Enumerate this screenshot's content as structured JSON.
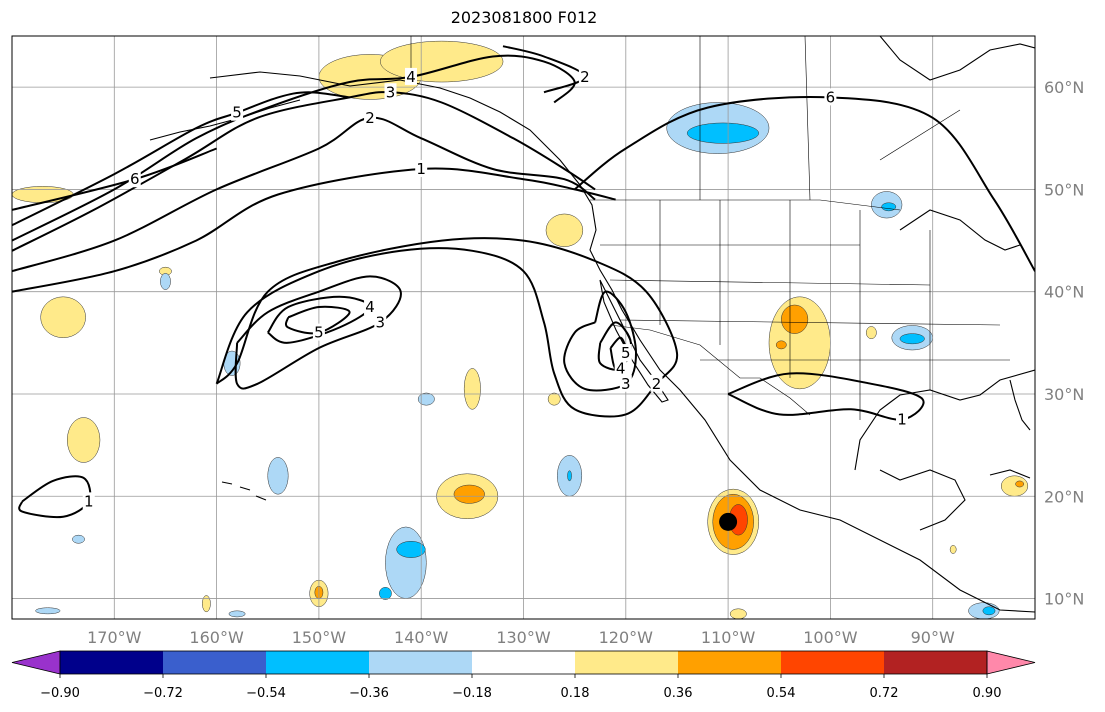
{
  "title": "2023081800 F012",
  "chart_data": {
    "type": "heatmap",
    "title": "2023081800 F012",
    "projection": "plate-carree",
    "lon_range": [
      -180,
      -80
    ],
    "lat_range": [
      8,
      65
    ],
    "grid": true,
    "x_ticks": [
      {
        "lon": -170,
        "label": "170°W"
      },
      {
        "lon": -160,
        "label": "160°W"
      },
      {
        "lon": -150,
        "label": "150°W"
      },
      {
        "lon": -140,
        "label": "140°W"
      },
      {
        "lon": -130,
        "label": "130°W"
      },
      {
        "lon": -120,
        "label": "120°W"
      },
      {
        "lon": -110,
        "label": "110°W"
      },
      {
        "lon": -100,
        "label": "100°W"
      },
      {
        "lon": -90,
        "label": "90°W"
      }
    ],
    "y_ticks": [
      {
        "lat": 60,
        "label": "60°N"
      },
      {
        "lat": 50,
        "label": "50°N"
      },
      {
        "lat": 40,
        "label": "40°N"
      },
      {
        "lat": 30,
        "label": "30°N"
      },
      {
        "lat": 20,
        "label": "20°N"
      },
      {
        "lat": 10,
        "label": "10°N"
      }
    ],
    "colorbar": {
      "placement": "bottom",
      "extend": "both",
      "bins": [
        {
          "from": null,
          "to": -0.9,
          "color": "#9932cc"
        },
        {
          "from": -0.9,
          "to": -0.72,
          "color": "#00008b"
        },
        {
          "from": -0.72,
          "to": -0.54,
          "color": "#3a5fcd"
        },
        {
          "from": -0.54,
          "to": -0.36,
          "color": "#00bfff"
        },
        {
          "from": -0.36,
          "to": -0.18,
          "color": "#add8f6"
        },
        {
          "from": -0.18,
          "to": 0.18,
          "color": "#ffffff"
        },
        {
          "from": 0.18,
          "to": 0.36,
          "color": "#ffea8a"
        },
        {
          "from": 0.36,
          "to": 0.54,
          "color": "#ffa000"
        },
        {
          "from": 0.54,
          "to": 0.72,
          "color": "#ff4500"
        },
        {
          "from": 0.72,
          "to": 0.9,
          "color": "#b22222"
        },
        {
          "from": 0.9,
          "to": null,
          "color": "#ff88aa"
        }
      ],
      "tick_labels": [
        "−0.90",
        "−0.72",
        "−0.54",
        "−0.36",
        "−0.18",
        "0.18",
        "0.36",
        "0.54",
        "0.72",
        "0.90"
      ]
    },
    "shaded_regions": [
      {
        "bin": "0.18–0.36",
        "lon": -145,
        "lat": 61,
        "rx": 5,
        "ry": 2.2,
        "color": "#ffea8a"
      },
      {
        "bin": "0.18–0.36",
        "lon": -138,
        "lat": 62.5,
        "rx": 6,
        "ry": 2,
        "color": "#ffea8a"
      },
      {
        "bin": "0.18–0.36",
        "lon": -126,
        "lat": 46,
        "rx": 1.8,
        "ry": 1.6,
        "color": "#ffea8a"
      },
      {
        "bin": "0.18–0.36",
        "lon": -177,
        "lat": 49.5,
        "rx": 3,
        "ry": 0.8,
        "color": "#ffea8a"
      },
      {
        "bin": "0.18–0.36",
        "lon": -175,
        "lat": 37.5,
        "rx": 2.2,
        "ry": 2,
        "color": "#ffea8a"
      },
      {
        "bin": "0.18–0.36",
        "lon": -173,
        "lat": 25.5,
        "rx": 1.6,
        "ry": 2.2,
        "color": "#ffea8a"
      },
      {
        "bin": "0.18–0.36",
        "lon": -165,
        "lat": 42,
        "rx": 0.6,
        "ry": 0.4,
        "color": "#ffea8a"
      },
      {
        "bin": "0.18–0.36",
        "lon": -135,
        "lat": 30.5,
        "rx": 0.8,
        "ry": 2,
        "color": "#ffea8a"
      },
      {
        "bin": "0.18–0.36",
        "lon": -135.5,
        "lat": 20,
        "rx": 3,
        "ry": 2.2,
        "color": "#ffea8a"
      },
      {
        "bin": "0.36–0.54",
        "lon": -135.3,
        "lat": 20.2,
        "rx": 1.5,
        "ry": 0.9,
        "color": "#ffa000"
      },
      {
        "bin": "0.18–0.36",
        "lon": -150,
        "lat": 10.5,
        "rx": 0.9,
        "ry": 1.3,
        "color": "#ffea8a"
      },
      {
        "bin": "0.36–0.54",
        "lon": -150,
        "lat": 10.6,
        "rx": 0.4,
        "ry": 0.6,
        "color": "#ffa000"
      },
      {
        "bin": "0.18–0.36",
        "lon": -161,
        "lat": 9.5,
        "rx": 0.4,
        "ry": 0.8,
        "color": "#ffea8a"
      },
      {
        "bin": "0.18–0.36",
        "lon": -127,
        "lat": 29.5,
        "rx": 0.6,
        "ry": 0.6,
        "color": "#ffea8a"
      },
      {
        "bin": "0.18–0.36",
        "lon": -103,
        "lat": 35,
        "rx": 3,
        "ry": 4.5,
        "color": "#ffea8a"
      },
      {
        "bin": "0.36–0.54",
        "lon": -103.5,
        "lat": 37.3,
        "rx": 1.3,
        "ry": 1.4,
        "color": "#ffa000"
      },
      {
        "bin": "0.36–0.54",
        "lon": -104.8,
        "lat": 34.8,
        "rx": 0.5,
        "ry": 0.4,
        "color": "#ffa000"
      },
      {
        "bin": "0.18–0.36",
        "lon": -96,
        "lat": 36,
        "rx": 0.5,
        "ry": 0.6,
        "color": "#ffea8a"
      },
      {
        "bin": "0.18–0.36",
        "lon": -109.5,
        "lat": 17.5,
        "rx": 2.5,
        "ry": 3.2,
        "color": "#ffea8a"
      },
      {
        "bin": "0.36–0.54",
        "lon": -109.5,
        "lat": 17.5,
        "rx": 2,
        "ry": 2.7,
        "color": "#ffa000"
      },
      {
        "bin": "0.54–0.72",
        "lon": -109,
        "lat": 17.7,
        "rx": 0.9,
        "ry": 1.5,
        "color": "#ff4500"
      },
      {
        "bin": "0.18–0.36",
        "lon": -82,
        "lat": 21,
        "rx": 1.3,
        "ry": 1,
        "color": "#ffea8a"
      },
      {
        "bin": "0.36–0.54",
        "lon": -81.5,
        "lat": 21.2,
        "rx": 0.4,
        "ry": 0.3,
        "color": "#ffa000"
      },
      {
        "bin": "0.18–0.36",
        "lon": -88,
        "lat": 14.8,
        "rx": 0.3,
        "ry": 0.4,
        "color": "#ffea8a"
      },
      {
        "bin": "0.18–0.36",
        "lon": -109,
        "lat": 8.5,
        "rx": 0.8,
        "ry": 0.5,
        "color": "#ffea8a"
      },
      {
        "bin": "−0.36–−0.18",
        "lon": -111,
        "lat": 56,
        "rx": 5,
        "ry": 2.5,
        "color": "#add8f6"
      },
      {
        "bin": "−0.54–−0.36",
        "lon": -110.5,
        "lat": 55.5,
        "rx": 3.5,
        "ry": 1,
        "color": "#00bfff"
      },
      {
        "bin": "−0.36–−0.18",
        "lon": -94.5,
        "lat": 48.5,
        "rx": 1.5,
        "ry": 1.3,
        "color": "#add8f6"
      },
      {
        "bin": "−0.54–−0.36",
        "lon": -94.3,
        "lat": 48.3,
        "rx": 0.7,
        "ry": 0.4,
        "color": "#00bfff"
      },
      {
        "bin": "−0.36–−0.18",
        "lon": -92,
        "lat": 35.5,
        "rx": 2,
        "ry": 1.2,
        "color": "#add8f6"
      },
      {
        "bin": "−0.54–−0.36",
        "lon": -92,
        "lat": 35.4,
        "rx": 1.2,
        "ry": 0.5,
        "color": "#00bfff"
      },
      {
        "bin": "−0.36–−0.18",
        "lon": -165,
        "lat": 41,
        "rx": 0.5,
        "ry": 0.8,
        "color": "#add8f6"
      },
      {
        "bin": "−0.36–−0.18",
        "lon": -158.5,
        "lat": 33,
        "rx": 0.8,
        "ry": 1.2,
        "color": "#add8f6"
      },
      {
        "bin": "−0.36–−0.18",
        "lon": -139.5,
        "lat": 29.5,
        "rx": 0.8,
        "ry": 0.6,
        "color": "#add8f6"
      },
      {
        "bin": "−0.36–−0.18",
        "lon": -125.5,
        "lat": 22,
        "rx": 1.2,
        "ry": 2,
        "color": "#add8f6"
      },
      {
        "bin": "−0.54–−0.36",
        "lon": -125.5,
        "lat": 22,
        "rx": 0.2,
        "ry": 0.5,
        "color": "#00bfff"
      },
      {
        "bin": "−0.36–−0.18",
        "lon": -154,
        "lat": 22,
        "rx": 1,
        "ry": 1.8,
        "color": "#add8f6"
      },
      {
        "bin": "−0.36–−0.18",
        "lon": -141.5,
        "lat": 13.5,
        "rx": 2,
        "ry": 3.5,
        "color": "#add8f6"
      },
      {
        "bin": "−0.54–−0.36",
        "lon": -141,
        "lat": 14.8,
        "rx": 1.4,
        "ry": 0.8,
        "color": "#00bfff"
      },
      {
        "bin": "−0.54–−0.36",
        "lon": -143.5,
        "lat": 10.5,
        "rx": 0.6,
        "ry": 0.6,
        "color": "#00bfff"
      },
      {
        "bin": "−0.36–−0.18",
        "lon": -173.5,
        "lat": 15.8,
        "rx": 0.6,
        "ry": 0.4,
        "color": "#add8f6"
      },
      {
        "bin": "−0.36–−0.18",
        "lon": -176.5,
        "lat": 8.8,
        "rx": 1.2,
        "ry": 0.3,
        "color": "#add8f6"
      },
      {
        "bin": "−0.36–−0.18",
        "lon": -158,
        "lat": 8.5,
        "rx": 0.8,
        "ry": 0.3,
        "color": "#add8f6"
      },
      {
        "bin": "−0.36–−0.18",
        "lon": -85,
        "lat": 8.8,
        "rx": 1.5,
        "ry": 0.8,
        "color": "#add8f6"
      },
      {
        "bin": "−0.54–−0.36",
        "lon": -84.5,
        "lat": 8.8,
        "rx": 0.6,
        "ry": 0.4,
        "color": "#00bfff"
      }
    ],
    "contours": [
      {
        "label": "1",
        "points": [
          [
            -180,
            40
          ],
          [
            -170,
            42
          ],
          [
            -162,
            45
          ],
          [
            -154,
            49.5
          ],
          [
            -140,
            52
          ],
          [
            -130,
            51
          ],
          [
            -125,
            50
          ],
          [
            -121,
            49
          ]
        ]
      },
      {
        "label": "1",
        "points": [
          [
            -179,
            19.5
          ],
          [
            -176,
            21.5
          ],
          [
            -173,
            21.8
          ],
          [
            -172.5,
            19.5
          ],
          [
            -175,
            18
          ],
          [
            -179,
            18.5
          ],
          [
            -179,
            19.5
          ]
        ]
      },
      {
        "label": "2",
        "points": [
          [
            -180,
            42
          ],
          [
            -170,
            45
          ],
          [
            -160,
            50
          ],
          [
            -150,
            54
          ],
          [
            -145,
            57
          ],
          [
            -140,
            55
          ],
          [
            -133,
            52
          ],
          [
            -126,
            51
          ],
          [
            -123,
            49
          ]
        ]
      },
      {
        "label": "2",
        "points": [
          [
            -132,
            64
          ],
          [
            -128,
            63
          ],
          [
            -124,
            61
          ],
          [
            -128,
            59.5
          ]
        ]
      },
      {
        "label": "2",
        "points": [
          [
            -160,
            31
          ],
          [
            -157,
            38
          ],
          [
            -150,
            42
          ],
          [
            -142,
            44
          ],
          [
            -135,
            44
          ],
          [
            -130,
            42
          ],
          [
            -128,
            37
          ],
          [
            -127,
            32
          ],
          [
            -125,
            28.5
          ],
          [
            -120,
            28
          ],
          [
            -117,
            31
          ],
          [
            -115,
            34
          ],
          [
            -118,
            40
          ],
          [
            -123,
            43
          ],
          [
            -130,
            45
          ],
          [
            -138,
            45
          ],
          [
            -148,
            43
          ],
          [
            -155,
            40
          ],
          [
            -158,
            33
          ],
          [
            -160,
            31
          ]
        ]
      },
      {
        "label": "3",
        "points": [
          [
            -180,
            44
          ],
          [
            -172,
            48
          ],
          [
            -163,
            53
          ],
          [
            -156,
            57
          ],
          [
            -147,
            59
          ],
          [
            -143,
            59.5
          ],
          [
            -138,
            58.5
          ],
          [
            -131,
            55
          ],
          [
            -126,
            52
          ],
          [
            -123,
            50
          ]
        ]
      },
      {
        "label": "3",
        "points": [
          [
            -158,
            35
          ],
          [
            -155,
            38
          ],
          [
            -150,
            40
          ],
          [
            -145,
            41.5
          ],
          [
            -142,
            40
          ],
          [
            -144,
            37
          ],
          [
            -150,
            34.5
          ],
          [
            -156,
            31
          ],
          [
            -158,
            31
          ],
          [
            -158,
            35
          ]
        ]
      },
      {
        "label": "3",
        "points": [
          [
            -123,
            37
          ],
          [
            -122,
            40
          ],
          [
            -120,
            38
          ],
          [
            -119,
            34
          ],
          [
            -120,
            31
          ],
          [
            -124,
            30.5
          ],
          [
            -126,
            33
          ],
          [
            -125,
            36
          ],
          [
            -123,
            37
          ]
        ]
      },
      {
        "label": "4",
        "points": [
          [
            -180,
            45
          ],
          [
            -170,
            50
          ],
          [
            -162,
            55
          ],
          [
            -155,
            58
          ],
          [
            -147,
            60.5
          ],
          [
            -141,
            61
          ],
          [
            -133,
            63
          ],
          [
            -128,
            62.5
          ],
          [
            -125,
            60.5
          ],
          [
            -127,
            58.5
          ]
        ]
      },
      {
        "label": "4",
        "points": [
          [
            -155,
            36
          ],
          [
            -153,
            38.5
          ],
          [
            -148,
            39.5
          ],
          [
            -145,
            38.5
          ],
          [
            -148,
            36.5
          ],
          [
            -153,
            35
          ],
          [
            -155,
            36
          ]
        ]
      },
      {
        "label": "4",
        "points": [
          [
            -122.5,
            35
          ],
          [
            -121,
            37
          ],
          [
            -119.5,
            35
          ],
          [
            -120.5,
            32.5
          ],
          [
            -122.5,
            33
          ],
          [
            -122.5,
            35
          ]
        ]
      },
      {
        "label": "5",
        "points": [
          [
            -180,
            46.5
          ],
          [
            -170,
            51.5
          ],
          [
            -162,
            56
          ],
          [
            -158,
            57.5
          ],
          [
            -154,
            59
          ],
          [
            -151,
            59.5
          ],
          [
            -147,
            59
          ]
        ]
      },
      {
        "label": "5",
        "points": [
          [
            -153,
            37.5
          ],
          [
            -150,
            38.5
          ],
          [
            -147,
            38
          ],
          [
            -150,
            36
          ],
          [
            -153,
            36.5
          ],
          [
            -153,
            37.5
          ]
        ]
      },
      {
        "label": "5",
        "points": [
          [
            -121.5,
            34.5
          ],
          [
            -120.5,
            35.5
          ],
          [
            -120,
            34
          ],
          [
            -121,
            32.5
          ],
          [
            -121.5,
            34.5
          ]
        ]
      },
      {
        "label": "6",
        "points": [
          [
            -180,
            48
          ],
          [
            -168,
            51
          ],
          [
            -160,
            54
          ]
        ]
      },
      {
        "label": "6",
        "points": [
          [
            -125,
            50
          ],
          [
            -120,
            54
          ],
          [
            -112,
            58
          ],
          [
            -100,
            59
          ],
          [
            -90,
            57
          ],
          [
            -84,
            49
          ],
          [
            -80,
            42
          ]
        ]
      },
      {
        "label": "1",
        "points": [
          [
            -110,
            30
          ],
          [
            -104,
            32
          ],
          [
            -96,
            31
          ],
          [
            -91,
            29.5
          ],
          [
            -93,
            27.5
          ],
          [
            -98,
            28.5
          ],
          [
            -105,
            28
          ],
          [
            -110,
            30
          ]
        ]
      }
    ],
    "markers": [
      {
        "type": "point",
        "lon": -110,
        "lat": 17.5,
        "color": "#000000"
      }
    ]
  }
}
